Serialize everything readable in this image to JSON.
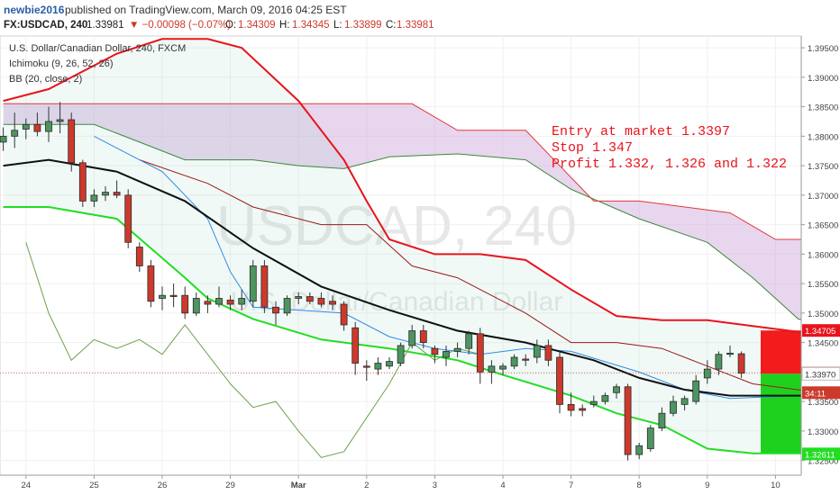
{
  "header": {
    "author": "newbie2016",
    "published": "published on TradingView.com, March 09, 2016 04:25 EST",
    "symbol_line": "FX:USDCAD, 240",
    "last": "1.33981",
    "change": "▼ −0.00098 (−0.07%)",
    "o_label": "O:",
    "o": "1.34309",
    "h_label": "H:",
    "h": "1.34345",
    "l_label": "L:",
    "l": "1.33899",
    "c_label": "C:",
    "c": "1.33981"
  },
  "legend": {
    "title": "U.S. Dollar/Canadian Dollar, 240, FXCM",
    "ichimoku": "Ichimoku (9, 26, 52, 26)",
    "bb": "BB (20, close, 2)"
  },
  "watermark": {
    "symbol": "USDCAD, 240",
    "name": "U.S. Dollar/Canadian Dollar"
  },
  "note": {
    "line1": "Entry at market 1.3397",
    "line2": "Stop 1.347",
    "line3": "Profit 1.332, 1.326 and 1.322",
    "color": "#e8141c"
  },
  "colors": {
    "bull": "#4d9560",
    "bear": "#cc3a2c",
    "bb_upper": "#e8141c",
    "bb_lower": "#22dd22",
    "bb_basis": "#111111",
    "cloud": "#c9a4d6",
    "stop_zone": "#f21c1c",
    "target_zone": "#1ed11e",
    "tenkan": "#2f8de4",
    "kijun": "#9a1a1a",
    "chikou": "#6fa050",
    "span_a": "#3a8a3a",
    "span_b": "#e23838"
  },
  "chart_data": {
    "type": "candlestick",
    "symbol": "USDCAD",
    "timeframe": "240",
    "ylim": [
      1.3225,
      1.397
    ],
    "y_ticks": [
      "1.39500",
      "1.39000",
      "1.38500",
      "1.38000",
      "1.37500",
      "1.37000",
      "1.36500",
      "1.36000",
      "1.35500",
      "1.35000",
      "1.34500",
      "1.34000",
      "1.33500",
      "1.33000",
      "1.32500"
    ],
    "y_tick_values": [
      1.395,
      1.39,
      1.385,
      1.38,
      1.375,
      1.37,
      1.365,
      1.36,
      1.355,
      1.35,
      1.345,
      1.34,
      1.335,
      1.33,
      1.325
    ],
    "x_ticks": [
      "24",
      "25",
      "26",
      "29",
      "Mar",
      "2",
      "3",
      "4",
      "7",
      "8",
      "9",
      "10"
    ],
    "x_tick_index": [
      2,
      8,
      14,
      20,
      26,
      32,
      38,
      44,
      50,
      56,
      62,
      68
    ],
    "price_labels": [
      {
        "value": 1.34705,
        "text": "1.34705",
        "color": "#e8141c"
      },
      {
        "value": 1.33981,
        "text": "1.33981",
        "color": "#cc3a2c"
      },
      {
        "value": 1.3365,
        "text": "34:11",
        "color": "#cc3a2c"
      },
      {
        "value": 1.3397,
        "text": "1.33970",
        "color": "#ffffff"
      },
      {
        "value": 1.32611,
        "text": "1.32611",
        "color": "#22dd22"
      }
    ],
    "candles": [
      {
        "o": 1.379,
        "h": 1.3815,
        "l": 1.3775,
        "c": 1.38
      },
      {
        "o": 1.38,
        "h": 1.384,
        "l": 1.378,
        "c": 1.381
      },
      {
        "o": 1.3812,
        "h": 1.383,
        "l": 1.3795,
        "c": 1.382
      },
      {
        "o": 1.382,
        "h": 1.384,
        "l": 1.38,
        "c": 1.3808
      },
      {
        "o": 1.3808,
        "h": 1.385,
        "l": 1.379,
        "c": 1.3825
      },
      {
        "o": 1.3825,
        "h": 1.3858,
        "l": 1.3805,
        "c": 1.3828
      },
      {
        "o": 1.3828,
        "h": 1.384,
        "l": 1.374,
        "c": 1.3755
      },
      {
        "o": 1.3755,
        "h": 1.376,
        "l": 1.368,
        "c": 1.369
      },
      {
        "o": 1.369,
        "h": 1.371,
        "l": 1.368,
        "c": 1.37
      },
      {
        "o": 1.37,
        "h": 1.3715,
        "l": 1.369,
        "c": 1.3705
      },
      {
        "o": 1.3705,
        "h": 1.3725,
        "l": 1.3695,
        "c": 1.37
      },
      {
        "o": 1.37,
        "h": 1.371,
        "l": 1.361,
        "c": 1.362
      },
      {
        "o": 1.3612,
        "h": 1.362,
        "l": 1.357,
        "c": 1.358
      },
      {
        "o": 1.358,
        "h": 1.359,
        "l": 1.351,
        "c": 1.352
      },
      {
        "o": 1.3525,
        "h": 1.3545,
        "l": 1.3505,
        "c": 1.353
      },
      {
        "o": 1.353,
        "h": 1.355,
        "l": 1.351,
        "c": 1.3528
      },
      {
        "o": 1.353,
        "h": 1.3545,
        "l": 1.349,
        "c": 1.35
      },
      {
        "o": 1.35,
        "h": 1.3535,
        "l": 1.3495,
        "c": 1.3525
      },
      {
        "o": 1.352,
        "h": 1.353,
        "l": 1.35,
        "c": 1.3515
      },
      {
        "o": 1.3515,
        "h": 1.3545,
        "l": 1.351,
        "c": 1.3525
      },
      {
        "o": 1.3522,
        "h": 1.353,
        "l": 1.3505,
        "c": 1.3515
      },
      {
        "o": 1.3515,
        "h": 1.354,
        "l": 1.3505,
        "c": 1.3525
      },
      {
        "o": 1.352,
        "h": 1.359,
        "l": 1.351,
        "c": 1.358
      },
      {
        "o": 1.358,
        "h": 1.359,
        "l": 1.35,
        "c": 1.351
      },
      {
        "o": 1.351,
        "h": 1.352,
        "l": 1.348,
        "c": 1.35
      },
      {
        "o": 1.35,
        "h": 1.353,
        "l": 1.3495,
        "c": 1.3525
      },
      {
        "o": 1.3525,
        "h": 1.3535,
        "l": 1.3515,
        "c": 1.3528
      },
      {
        "o": 1.3528,
        "h": 1.3535,
        "l": 1.3515,
        "c": 1.352
      },
      {
        "o": 1.3525,
        "h": 1.3535,
        "l": 1.351,
        "c": 1.3515
      },
      {
        "o": 1.352,
        "h": 1.353,
        "l": 1.3505,
        "c": 1.3515
      },
      {
        "o": 1.3515,
        "h": 1.352,
        "l": 1.347,
        "c": 1.348
      },
      {
        "o": 1.3475,
        "h": 1.3485,
        "l": 1.3395,
        "c": 1.3415
      },
      {
        "o": 1.341,
        "h": 1.342,
        "l": 1.3385,
        "c": 1.3408
      },
      {
        "o": 1.3405,
        "h": 1.3425,
        "l": 1.3395,
        "c": 1.3415
      },
      {
        "o": 1.341,
        "h": 1.3425,
        "l": 1.3405,
        "c": 1.3418
      },
      {
        "o": 1.3415,
        "h": 1.345,
        "l": 1.341,
        "c": 1.3445
      },
      {
        "o": 1.3445,
        "h": 1.348,
        "l": 1.344,
        "c": 1.347
      },
      {
        "o": 1.347,
        "h": 1.348,
        "l": 1.344,
        "c": 1.345
      },
      {
        "o": 1.344,
        "h": 1.3445,
        "l": 1.3415,
        "c": 1.343
      },
      {
        "o": 1.3425,
        "h": 1.3445,
        "l": 1.341,
        "c": 1.3435
      },
      {
        "o": 1.3435,
        "h": 1.345,
        "l": 1.3425,
        "c": 1.344
      },
      {
        "o": 1.344,
        "h": 1.347,
        "l": 1.343,
        "c": 1.3465
      },
      {
        "o": 1.3465,
        "h": 1.3475,
        "l": 1.338,
        "c": 1.34
      },
      {
        "o": 1.34,
        "h": 1.342,
        "l": 1.338,
        "c": 1.341
      },
      {
        "o": 1.3405,
        "h": 1.3415,
        "l": 1.3395,
        "c": 1.341
      },
      {
        "o": 1.341,
        "h": 1.343,
        "l": 1.3405,
        "c": 1.3425
      },
      {
        "o": 1.3422,
        "h": 1.343,
        "l": 1.341,
        "c": 1.342
      },
      {
        "o": 1.3425,
        "h": 1.3455,
        "l": 1.3415,
        "c": 1.3445
      },
      {
        "o": 1.3445,
        "h": 1.3455,
        "l": 1.341,
        "c": 1.342
      },
      {
        "o": 1.3425,
        "h": 1.3435,
        "l": 1.333,
        "c": 1.3345
      },
      {
        "o": 1.3345,
        "h": 1.3365,
        "l": 1.3325,
        "c": 1.3335
      },
      {
        "o": 1.3338,
        "h": 1.3345,
        "l": 1.3325,
        "c": 1.3335
      },
      {
        "o": 1.3345,
        "h": 1.336,
        "l": 1.334,
        "c": 1.335
      },
      {
        "o": 1.335,
        "h": 1.3365,
        "l": 1.3345,
        "c": 1.336
      },
      {
        "o": 1.3365,
        "h": 1.338,
        "l": 1.3355,
        "c": 1.3375
      },
      {
        "o": 1.3375,
        "h": 1.338,
        "l": 1.325,
        "c": 1.326
      },
      {
        "o": 1.326,
        "h": 1.328,
        "l": 1.3252,
        "c": 1.3275
      },
      {
        "o": 1.327,
        "h": 1.331,
        "l": 1.3265,
        "c": 1.3305
      },
      {
        "o": 1.3305,
        "h": 1.334,
        "l": 1.33,
        "c": 1.333
      },
      {
        "o": 1.333,
        "h": 1.336,
        "l": 1.3325,
        "c": 1.335
      },
      {
        "o": 1.3345,
        "h": 1.336,
        "l": 1.3335,
        "c": 1.3355
      },
      {
        "o": 1.335,
        "h": 1.3395,
        "l": 1.3345,
        "c": 1.3385
      },
      {
        "o": 1.339,
        "h": 1.342,
        "l": 1.338,
        "c": 1.3405
      },
      {
        "o": 1.3405,
        "h": 1.3435,
        "l": 1.3395,
        "c": 1.343
      },
      {
        "o": 1.343,
        "h": 1.3445,
        "l": 1.3425,
        "c": 1.3432
      },
      {
        "o": 1.3431,
        "h": 1.3435,
        "l": 1.339,
        "c": 1.3398
      }
    ],
    "bb_upper": [
      [
        0,
        1.386
      ],
      [
        4,
        1.388
      ],
      [
        10,
        1.394
      ],
      [
        14,
        1.3965
      ],
      [
        18,
        1.3965
      ],
      [
        21,
        1.395
      ],
      [
        26,
        1.386
      ],
      [
        30,
        1.376
      ],
      [
        32,
        1.369
      ],
      [
        34,
        1.3625
      ],
      [
        38,
        1.36
      ],
      [
        42,
        1.36
      ],
      [
        46,
        1.359
      ],
      [
        50,
        1.354
      ],
      [
        54,
        1.3495
      ],
      [
        58,
        1.3488
      ],
      [
        62,
        1.3488
      ],
      [
        66,
        1.3478
      ],
      [
        70,
        1.3468
      ],
      [
        72,
        1.347
      ]
    ],
    "bb_basis": [
      [
        0,
        1.375
      ],
      [
        4,
        1.376
      ],
      [
        10,
        1.374
      ],
      [
        16,
        1.369
      ],
      [
        22,
        1.361
      ],
      [
        28,
        1.3545
      ],
      [
        34,
        1.3505
      ],
      [
        40,
        1.347
      ],
      [
        46,
        1.345
      ],
      [
        52,
        1.342
      ],
      [
        56,
        1.339
      ],
      [
        60,
        1.337
      ],
      [
        64,
        1.336
      ],
      [
        68,
        1.336
      ],
      [
        72,
        1.336
      ]
    ],
    "bb_lower": [
      [
        0,
        1.368
      ],
      [
        4,
        1.368
      ],
      [
        10,
        1.366
      ],
      [
        16,
        1.356
      ],
      [
        18,
        1.3525
      ],
      [
        22,
        1.349
      ],
      [
        28,
        1.3455
      ],
      [
        34,
        1.344
      ],
      [
        40,
        1.342
      ],
      [
        44,
        1.3395
      ],
      [
        50,
        1.336
      ],
      [
        54,
        1.333
      ],
      [
        58,
        1.331
      ],
      [
        62,
        1.327
      ],
      [
        66,
        1.3262
      ],
      [
        72,
        1.3262
      ]
    ],
    "tenkan": [
      [
        8,
        1.38
      ],
      [
        14,
        1.374
      ],
      [
        18,
        1.366
      ],
      [
        20,
        1.357
      ],
      [
        22,
        1.351
      ],
      [
        26,
        1.3505
      ],
      [
        30,
        1.35
      ],
      [
        34,
        1.346
      ],
      [
        38,
        1.344
      ],
      [
        42,
        1.343
      ],
      [
        46,
        1.344
      ],
      [
        50,
        1.3435
      ],
      [
        56,
        1.34
      ],
      [
        60,
        1.337
      ],
      [
        64,
        1.3355
      ],
      [
        70,
        1.336
      ],
      [
        72,
        1.336
      ]
    ],
    "kijun": [
      [
        12,
        1.376
      ],
      [
        18,
        1.372
      ],
      [
        22,
        1.368
      ],
      [
        28,
        1.365
      ],
      [
        32,
        1.365
      ],
      [
        36,
        1.358
      ],
      [
        40,
        1.356
      ],
      [
        46,
        1.35
      ],
      [
        50,
        1.345
      ],
      [
        54,
        1.345
      ],
      [
        58,
        1.344
      ],
      [
        62,
        1.341
      ],
      [
        66,
        1.338
      ],
      [
        72,
        1.3365
      ]
    ],
    "chikou": [
      [
        2,
        1.362
      ],
      [
        4,
        1.35
      ],
      [
        6,
        1.342
      ],
      [
        8,
        1.3455
      ],
      [
        10,
        1.344
      ],
      [
        12,
        1.3455
      ],
      [
        14,
        1.343
      ],
      [
        16,
        1.348
      ],
      [
        18,
        1.343
      ],
      [
        20,
        1.338
      ],
      [
        22,
        1.334
      ],
      [
        24,
        1.335
      ],
      [
        26,
        1.33
      ],
      [
        28,
        1.3255
      ],
      [
        30,
        1.3265
      ],
      [
        34,
        1.338
      ],
      [
        36,
        1.345
      ],
      [
        38,
        1.342
      ],
      [
        40,
        1.344
      ],
      [
        42,
        1.343
      ]
    ],
    "span_a": [
      [
        0,
        1.382
      ],
      [
        8,
        1.382
      ],
      [
        12,
        1.379
      ],
      [
        16,
        1.376
      ],
      [
        22,
        1.376
      ],
      [
        26,
        1.375
      ],
      [
        30,
        1.3745
      ],
      [
        34,
        1.3765
      ],
      [
        40,
        1.377
      ],
      [
        46,
        1.376
      ],
      [
        50,
        1.371
      ],
      [
        56,
        1.366
      ],
      [
        62,
        1.362
      ],
      [
        66,
        1.356
      ],
      [
        70,
        1.349
      ],
      [
        74,
        1.347
      ],
      [
        76,
        1.347
      ]
    ],
    "span_b": [
      [
        0,
        1.3855
      ],
      [
        24,
        1.3855
      ],
      [
        36,
        1.3855
      ],
      [
        40,
        1.381
      ],
      [
        46,
        1.381
      ],
      [
        52,
        1.369
      ],
      [
        56,
        1.369
      ],
      [
        64,
        1.367
      ],
      [
        68,
        1.3625
      ],
      [
        72,
        1.3625
      ],
      [
        80,
        1.3625
      ],
      [
        84,
        1.3617
      ]
    ],
    "cloud_top": [
      [
        0,
        1.3855
      ],
      [
        24,
        1.3855
      ],
      [
        36,
        1.3855
      ],
      [
        40,
        1.381
      ],
      [
        46,
        1.381
      ],
      [
        52,
        1.369
      ],
      [
        56,
        1.369
      ],
      [
        64,
        1.367
      ],
      [
        68,
        1.3625
      ],
      [
        72,
        1.3625
      ],
      [
        80,
        1.3625
      ],
      [
        84,
        1.3617
      ]
    ],
    "cloud_bottom": [
      [
        0,
        1.382
      ],
      [
        8,
        1.382
      ],
      [
        12,
        1.379
      ],
      [
        16,
        1.376
      ],
      [
        22,
        1.376
      ],
      [
        26,
        1.375
      ],
      [
        30,
        1.3745
      ],
      [
        34,
        1.3765
      ],
      [
        40,
        1.377
      ],
      [
        46,
        1.376
      ],
      [
        50,
        1.371
      ],
      [
        56,
        1.366
      ],
      [
        62,
        1.362
      ],
      [
        66,
        1.356
      ],
      [
        70,
        1.349
      ],
      [
        74,
        1.347
      ],
      [
        76,
        1.347
      ]
    ],
    "trade_zone": {
      "stop": 1.34705,
      "entry": 1.3397,
      "target": 1.32611
    }
  }
}
